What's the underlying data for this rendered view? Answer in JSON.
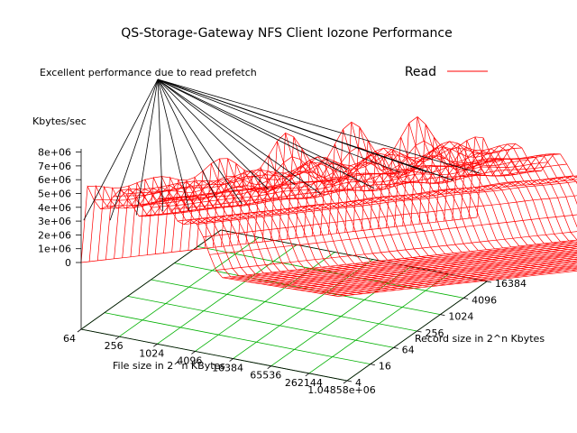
{
  "chart_data": {
    "type": "surface",
    "title": "QS-Storage-Gateway NFS Client Iozone Performance",
    "zlabel": "Kbytes/sec",
    "xlabel": "File size in 2^n KBytes",
    "ylabel": "Record size in 2^n Kbytes",
    "annotation": "Excellent performance due to read prefetch",
    "legend": {
      "entries": [
        "Read"
      ],
      "placement": "top-right",
      "line_color": "#ff0000"
    },
    "grid_color": "#00b000",
    "surface_color": "#ff0000",
    "x_ticks": [
      "64",
      "256",
      "1024",
      "4096",
      "16384",
      "65536",
      "262144",
      "1.04858e+06"
    ],
    "y_ticks": [
      "4",
      "16",
      "64",
      "256",
      "1024",
      "4096",
      "16384"
    ],
    "z_ticks": [
      "0",
      "1e+06",
      "2e+06",
      "3e+06",
      "4e+06",
      "5e+06",
      "6e+06",
      "7e+06",
      "8e+06"
    ],
    "zlim": [
      0,
      8000000
    ],
    "ridge": {
      "description_values": "peak read throughput along record-size axis at small file sizes",
      "peaks": [
        {
          "record": "4",
          "value": 5500000
        },
        {
          "record": "16",
          "value": 5600000
        },
        {
          "record": "64",
          "value": 6600000
        },
        {
          "record": "256",
          "value": 8200000
        },
        {
          "record": "1024",
          "value": 8500000
        },
        {
          "record": "4096",
          "value": 8300000
        },
        {
          "record": "16384",
          "value": 5800000
        }
      ],
      "plateau_value": 7000000,
      "large_file_value": 500000
    }
  }
}
